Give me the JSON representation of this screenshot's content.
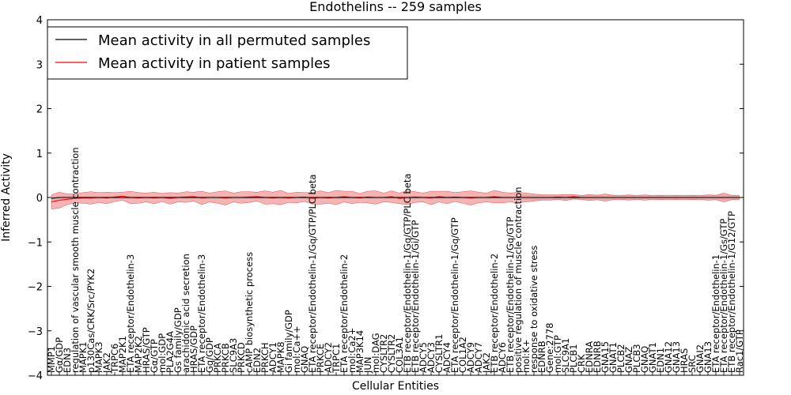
{
  "chart_data": {
    "type": "line",
    "title": "Endothelins -- 259 samples",
    "xlabel": "Cellular Entities",
    "ylabel": "Inferred Activity",
    "ylim": [
      -4,
      4
    ],
    "yticks": [
      "−4",
      "−3",
      "−2",
      "−1",
      "0",
      "1",
      "2",
      "3",
      "4"
    ],
    "grid": false,
    "legend": {
      "placement": "top-left",
      "entries": [
        {
          "label": "Mean activity in all permuted samples",
          "color": "#000000"
        },
        {
          "label": "Mean activity in patient samples",
          "color": "#ff0000"
        }
      ]
    },
    "band_color": "#f08080",
    "permuted_band_color": "#aaaaaa",
    "categories": [
      "MMP1",
      "Gα/GDP",
      "EDN3",
      "regulation of vascular smooth muscle contraction",
      "MAPK1",
      "p130Cas/CRK/Src/PYK2",
      "MAPK3",
      "JAK2",
      "TRPC6",
      "MAP2K1",
      "ETA receptor/Endothelin-3",
      "MAP2K2",
      "HRAS/GTP",
      "Gα/GTP",
      "mol:GDP",
      "PLA2G4A",
      "Gs family/GDP",
      "arachidonic acid secretion",
      "HRAS/GDP",
      "ETA receptor/Endothelin-3",
      "Gq/GDP",
      "PRKCA",
      "PRKCB",
      "SLC9A3",
      "PRKCD",
      "cAMP biosynthetic process",
      "EDN2",
      "PRKCH",
      "ADCY1",
      "MAPK8",
      "Gi family/GDP",
      "mol:Ca++",
      "GNAQ",
      "ETA receptor/Endothelin-1/Gq/GTP/PLC beta",
      "PRKCE",
      "ADCY2",
      "TRPC1",
      "ETA receptor/Endothelin-2",
      "mol:Ca2+",
      "MAP3K14",
      "JUN",
      "mol:DAG",
      "CYSLTR2",
      "CYSLTR2",
      "COL3A1",
      "ETB receptor/Endothelin-1/Gq/GTP/PLC beta",
      "ETB receptor/Endothelin-1/Gi/GTP",
      "ADCY5",
      "ADCY3",
      "CYSLTR1",
      "ADCY4",
      "ETA receptor/Endothelin-1/Gq/GTP",
      "COL1A2",
      "ADCY9",
      "ADCY7",
      "JAK2",
      "ETB receptor/Endothelin-2",
      "ADCY6",
      "ETB receptor/Endothelin-1/Gq/GTP",
      "positive regulation of muscle contraction",
      "mol:K+",
      "response to oxidative stress",
      "EDNRB",
      "Gene:2778",
      "mol:GTP",
      "SLC9A1",
      "PLCB1",
      "CRK",
      "EDNRA",
      "EDNRB",
      "GNA15",
      "GNAT1",
      "PLCB2",
      "GNAZ",
      "PLCB3",
      "GNAQ",
      "GNAT1",
      "EDN1",
      "GNA12",
      "GNA13",
      "HRAS",
      "SRC",
      "GNAI2",
      "GNA13",
      "ETA receptor/Endothelin-1",
      "ETA receptor/Endothelin-1/Gs/GTP",
      "ETB receptor/Endothelin-1/G12/GTP",
      "Rac1/GTP"
    ],
    "permuted_mean": [
      -0.02,
      0.0,
      0.0,
      0.0,
      0.0,
      0.0,
      0.0,
      0.0,
      0.0,
      0.0,
      0.0,
      0.0,
      0.0,
      0.0,
      0.0,
      0.0,
      0.0,
      0.0,
      0.0,
      0.0,
      0.0,
      0.0,
      0.0,
      0.0,
      0.0,
      0.0,
      0.0,
      0.0,
      0.0,
      0.0,
      0.0,
      0.0,
      0.0,
      0.0,
      0.0,
      0.0,
      0.0,
      0.0,
      0.0,
      0.0,
      0.0,
      0.0,
      0.0,
      0.0,
      0.0,
      0.0,
      0.0,
      0.0,
      0.0,
      0.0,
      0.0,
      0.0,
      0.0,
      0.0,
      0.0,
      0.0,
      0.0,
      0.0,
      0.0,
      0.0,
      0.0,
      0.0,
      0.0,
      0.0,
      0.0,
      0.0,
      0.0,
      0.0,
      0.0,
      0.0,
      0.0,
      0.0,
      0.0,
      0.0,
      0.0,
      0.0,
      0.0,
      0.0,
      0.0,
      0.0,
      0.0,
      0.0,
      0.0,
      0.0,
      0.0,
      0.0,
      0.0,
      0.0
    ],
    "patient_mean": [
      -0.1,
      -0.06,
      -0.04,
      -0.02,
      -0.01,
      -0.01,
      0.0,
      -0.01,
      0.01,
      0.03,
      0.0,
      -0.01,
      0.0,
      -0.01,
      0.0,
      -0.02,
      0.0,
      0.01,
      0.02,
      -0.01,
      0.0,
      0.0,
      -0.01,
      0.0,
      0.0,
      0.01,
      0.02,
      0.0,
      -0.01,
      0.0,
      -0.01,
      0.0,
      0.01,
      -0.02,
      0.0,
      -0.01,
      0.0,
      0.02,
      0.0,
      -0.01,
      0.01,
      0.0,
      0.0,
      0.02,
      -0.02,
      0.0,
      0.01,
      0.0,
      -0.01,
      0.02,
      0.0,
      0.01,
      0.0,
      -0.01,
      0.0,
      0.0,
      0.02,
      0.0,
      0.0,
      0.0,
      0.0,
      0.0,
      0.0,
      0.0,
      0.01,
      0.0,
      0.02,
      0.0,
      0.0,
      0.0,
      0.0,
      0.0,
      0.0,
      0.0,
      0.0,
      0.0,
      0.0,
      0.0,
      0.0,
      0.0,
      0.0,
      0.0,
      0.0,
      0.0,
      0.0,
      0.0,
      0.0,
      0.0
    ],
    "patient_band": [
      0.16,
      0.18,
      0.12,
      0.1,
      0.12,
      0.14,
      0.11,
      0.13,
      0.1,
      0.09,
      0.14,
      0.12,
      0.1,
      0.13,
      0.09,
      0.13,
      0.1,
      0.12,
      0.1,
      0.15,
      0.1,
      0.13,
      0.16,
      0.1,
      0.13,
      0.12,
      0.1,
      0.15,
      0.13,
      0.16,
      0.1,
      0.12,
      0.1,
      0.13,
      0.15,
      0.12,
      0.16,
      0.12,
      0.14,
      0.1,
      0.13,
      0.15,
      0.1,
      0.13,
      0.12,
      0.16,
      0.12,
      0.1,
      0.15,
      0.12,
      0.14,
      0.1,
      0.13,
      0.16,
      0.12,
      0.1,
      0.14,
      0.12,
      0.1,
      0.12,
      0.1,
      0.08,
      0.06,
      0.06,
      0.05,
      0.07,
      0.05,
      0.04,
      0.07,
      0.05,
      0.08,
      0.05,
      0.04,
      0.06,
      0.04,
      0.06,
      0.04,
      0.05,
      0.04,
      0.05,
      0.04,
      0.05,
      0.04,
      0.06,
      0.05,
      0.1,
      0.05,
      0.04
    ],
    "permuted_band": [
      0.03,
      0.03,
      0.03,
      0.03,
      0.03,
      0.03,
      0.03,
      0.03,
      0.03,
      0.03,
      0.03,
      0.03,
      0.03,
      0.03,
      0.03,
      0.03,
      0.03,
      0.03,
      0.03,
      0.03,
      0.03,
      0.03,
      0.03,
      0.03,
      0.03,
      0.03,
      0.03,
      0.03,
      0.03,
      0.03,
      0.03,
      0.03,
      0.03,
      0.03,
      0.03,
      0.03,
      0.03,
      0.03,
      0.03,
      0.03,
      0.03,
      0.03,
      0.03,
      0.03,
      0.03,
      0.03,
      0.03,
      0.03,
      0.03,
      0.03,
      0.03,
      0.03,
      0.03,
      0.03,
      0.03,
      0.03,
      0.03,
      0.03,
      0.03,
      0.03,
      0.06,
      0.06,
      0.06,
      0.06,
      0.06,
      0.06,
      0.06,
      0.06,
      0.06,
      0.06,
      0.06,
      0.06,
      0.06,
      0.06,
      0.06,
      0.06,
      0.06,
      0.06,
      0.06,
      0.06,
      0.06,
      0.06,
      0.06,
      0.06,
      0.06,
      0.06,
      0.06,
      0.06
    ]
  }
}
